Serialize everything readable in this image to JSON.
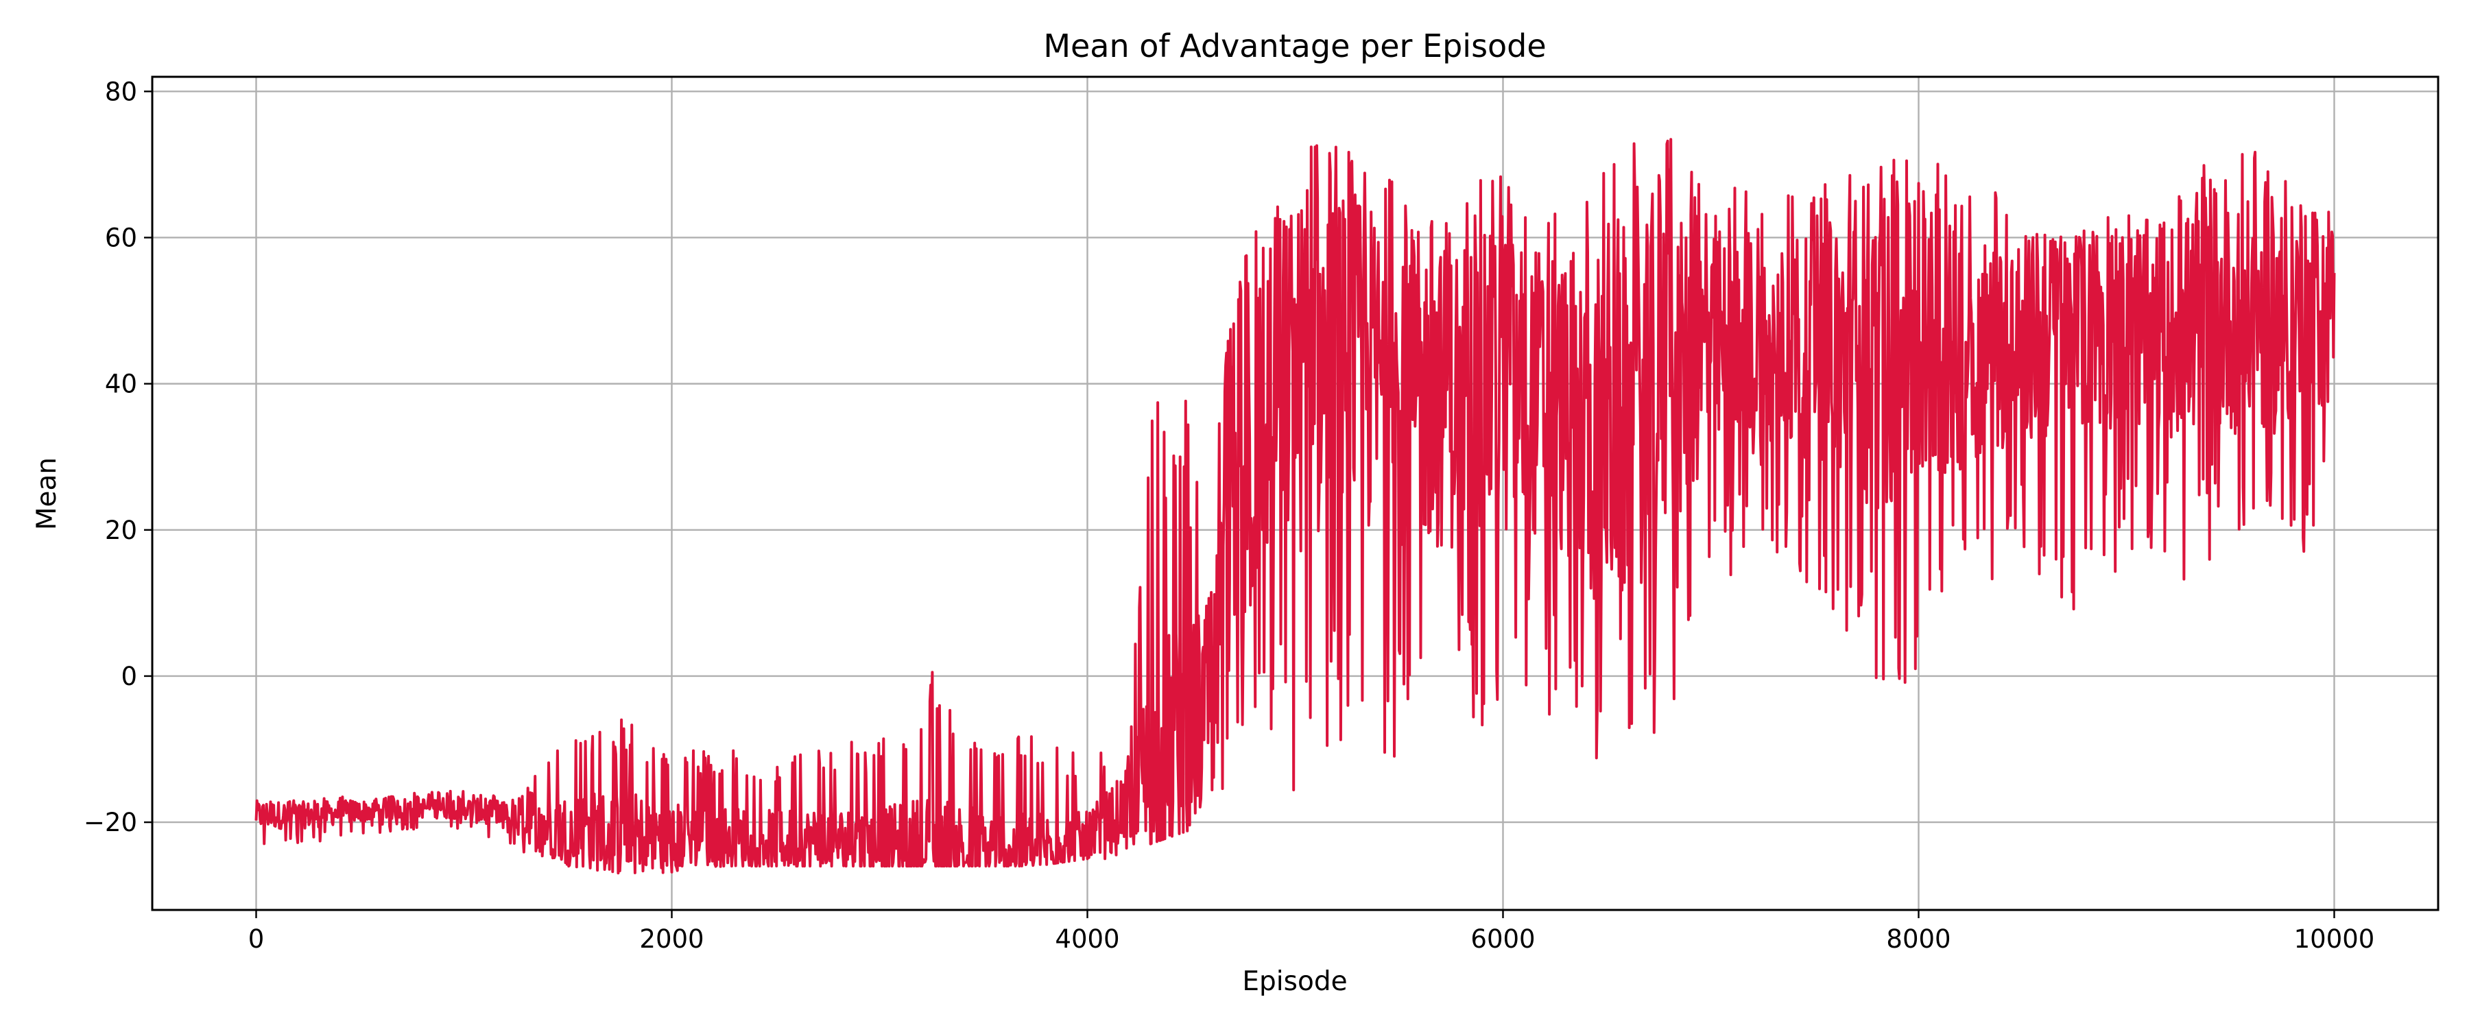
{
  "chart_data": {
    "type": "line",
    "title": "Mean of Advantage per Episode",
    "xlabel": "Episode",
    "ylabel": "Mean",
    "xlim": [
      -500,
      10500
    ],
    "ylim": [
      -32,
      82
    ],
    "xticks": [
      0,
      2000,
      4000,
      6000,
      8000,
      10000
    ],
    "xtick_labels": [
      "0",
      "2000",
      "4000",
      "6000",
      "8000",
      "10000"
    ],
    "yticks": [
      -20,
      0,
      20,
      40,
      60,
      80
    ],
    "ytick_labels": [
      "−20",
      "0",
      "20",
      "40",
      "60",
      "80"
    ],
    "grid": true,
    "legend": "none",
    "series_color": "#dc143c",
    "series": [
      {
        "x": [
          0,
          250,
          500,
          750,
          1000,
          1250,
          1500,
          1750,
          2000,
          2250,
          2500,
          2750,
          3000,
          3250,
          3500,
          3750,
          4000,
          4100,
          4200,
          4300,
          4400,
          4500,
          4600,
          4700,
          4800,
          4900,
          5000,
          5250,
          5500,
          5750,
          6000,
          6250,
          6500,
          6750,
          7000,
          7250,
          7500,
          7750,
          8000,
          8250,
          8500,
          8750,
          9000,
          9250,
          9500,
          9750,
          10000
        ],
        "y_center": [
          -19,
          -19,
          -18.5,
          -18,
          -18,
          -20,
          -21,
          -21.5,
          -22,
          -22,
          -22.5,
          -22.5,
          -23,
          -23.5,
          -23.5,
          -23.5,
          -22.5,
          -20,
          -17,
          -15,
          -12,
          -8,
          -2,
          15,
          32,
          40,
          42,
          43,
          40,
          38,
          40,
          38,
          30,
          40,
          45,
          44,
          45,
          43,
          44,
          45,
          46,
          47,
          48,
          48,
          49,
          49,
          50
        ],
        "y_low": [
          -24,
          -23,
          -22,
          -21,
          -21,
          -24,
          -26,
          -27,
          -27,
          -26,
          -26,
          -26,
          -26,
          -26,
          -26,
          -26,
          -25,
          -25,
          -24,
          -23,
          -22,
          -21,
          -19,
          -20,
          -18,
          -15,
          -19,
          -14,
          -12,
          -10,
          -5,
          -8,
          -13,
          -11,
          13,
          12,
          13,
          -4,
          -3,
          12,
          15,
          8,
          16,
          12,
          18,
          13,
          18
        ],
        "y_high": [
          -17,
          -16.5,
          -16.5,
          -16,
          -15.5,
          -17,
          -8,
          -5,
          -10,
          -10,
          -11,
          -9,
          -9,
          1.5,
          -5,
          -8,
          -11,
          -9,
          -8,
          36,
          45,
          35,
          30,
          55,
          62,
          69,
          74,
          72,
          67,
          65,
          71,
          65,
          71,
          76,
          68,
          66,
          67,
          70,
          72,
          68,
          67,
          60,
          65,
          68,
          75,
          70,
          63
        ]
      }
    ]
  }
}
